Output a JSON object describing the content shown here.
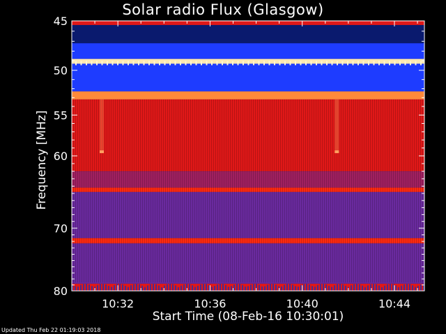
{
  "chart_data": {
    "type": "heatmap",
    "title": "Solar radio Flux (Glasgow)",
    "ylabel": "Frequency [MHz]",
    "xlabel": "Start Time (08-Feb-16 10:30:01)",
    "y_scale": "log",
    "ylim": [
      45,
      80
    ],
    "xlim_minutes": [
      0,
      15.3
    ],
    "y_ticks": [
      45,
      50,
      55,
      60,
      70,
      80
    ],
    "x_ticks": [
      "10:32",
      "10:36",
      "10:40",
      "10:44"
    ],
    "x_tick_minutes": [
      2,
      6,
      10,
      14
    ],
    "bands": [
      {
        "from": 45.0,
        "to": 45.4,
        "level": "red"
      },
      {
        "from": 45.4,
        "to": 47.2,
        "level": "dark-blue"
      },
      {
        "from": 47.2,
        "to": 48.8,
        "level": "blue"
      },
      {
        "from": 48.8,
        "to": 49.3,
        "level": "saturated"
      },
      {
        "from": 49.3,
        "to": 52.3,
        "level": "blue"
      },
      {
        "from": 52.3,
        "to": 53.2,
        "level": "orange"
      },
      {
        "from": 53.2,
        "to": 62.0,
        "level": "red"
      },
      {
        "from": 62.0,
        "to": 64.2,
        "level": "red-purple"
      },
      {
        "from": 64.2,
        "to": 64.8,
        "level": "bright-red"
      },
      {
        "from": 64.8,
        "to": 71.5,
        "level": "purple"
      },
      {
        "from": 71.5,
        "to": 72.3,
        "level": "bright-red"
      },
      {
        "from": 72.3,
        "to": 78.8,
        "level": "purple"
      },
      {
        "from": 78.8,
        "to": 80.0,
        "level": "blue-noise"
      }
    ],
    "colors": {
      "dark-blue": "#0a1a6e",
      "blue": "#1e3cff",
      "purple": "#6a2a9e",
      "red-purple": "#a02060",
      "red": "#e01818",
      "bright-red": "#ff2a10",
      "orange": "#ff8a3a",
      "saturated": "#ffe8b0"
    }
  },
  "footer": "Updated Thu Feb 22 01:19:03 2018"
}
